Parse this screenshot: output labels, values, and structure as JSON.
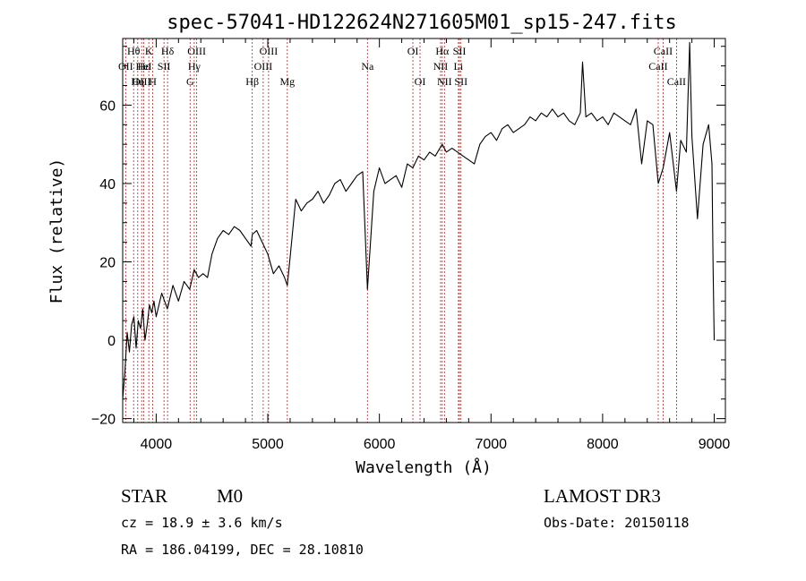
{
  "chart_data": {
    "type": "line",
    "title": "spec-57041-HD122624N271605M01_sp15-247.fits",
    "xlabel": "Wavelength (Å)",
    "ylabel": "Flux (relative)",
    "xlim": [
      3700,
      9100
    ],
    "ylim": [
      -21,
      77
    ],
    "xticks": [
      4000,
      5000,
      6000,
      7000,
      8000,
      9000
    ],
    "yticks": [
      -20,
      0,
      20,
      40,
      60
    ],
    "spectrum": {
      "name": "flux",
      "x": [
        3700,
        3720,
        3740,
        3760,
        3780,
        3800,
        3820,
        3840,
        3860,
        3880,
        3900,
        3920,
        3940,
        3960,
        3980,
        4000,
        4050,
        4100,
        4150,
        4200,
        4250,
        4300,
        4340,
        4380,
        4420,
        4460,
        4500,
        4550,
        4600,
        4650,
        4700,
        4750,
        4800,
        4850,
        4861,
        4900,
        4950,
        5000,
        5050,
        5100,
        5150,
        5175,
        5200,
        5250,
        5300,
        5350,
        5400,
        5450,
        5500,
        5550,
        5600,
        5650,
        5700,
        5750,
        5800,
        5850,
        5893,
        5950,
        6000,
        6050,
        6100,
        6150,
        6200,
        6250,
        6300,
        6350,
        6400,
        6450,
        6500,
        6563,
        6600,
        6650,
        6700,
        6750,
        6800,
        6850,
        6900,
        6950,
        7000,
        7050,
        7100,
        7150,
        7200,
        7250,
        7300,
        7350,
        7400,
        7450,
        7500,
        7550,
        7600,
        7650,
        7700,
        7750,
        7800,
        7820,
        7850,
        7900,
        7950,
        8000,
        8050,
        8100,
        8150,
        8200,
        8250,
        8300,
        8350,
        8400,
        8450,
        8498,
        8542,
        8600,
        8662,
        8700,
        8750,
        8780,
        8800,
        8850,
        8900,
        8950,
        8980,
        8990,
        9000
      ],
      "y": [
        -15,
        -8,
        2,
        -3,
        4,
        6,
        -2,
        5,
        3,
        8,
        0,
        4,
        9,
        7,
        10,
        6,
        12,
        8,
        14,
        10,
        15,
        13,
        18,
        16,
        17,
        16,
        22,
        26,
        28,
        27,
        29,
        28,
        26,
        24,
        27,
        28,
        25,
        22,
        17,
        19,
        16,
        14,
        21,
        36,
        33,
        35,
        36,
        38,
        35,
        37,
        40,
        41,
        38,
        40,
        42,
        43,
        13,
        38,
        44,
        40,
        41,
        42,
        39,
        45,
        44,
        47,
        46,
        48,
        47,
        50,
        48,
        49,
        48,
        47,
        46,
        45,
        50,
        52,
        53,
        51,
        54,
        55,
        53,
        54,
        55,
        57,
        56,
        58,
        57,
        59,
        57,
        58,
        56,
        55,
        58,
        71,
        57,
        58,
        56,
        57,
        55,
        58,
        57,
        56,
        55,
        59,
        45,
        56,
        55,
        40,
        44,
        53,
        38,
        51,
        48,
        76,
        52,
        31,
        50,
        55,
        45,
        18,
        0
      ]
    },
    "lines": [
      {
        "label": "Hθ",
        "x": 3798,
        "row": 0
      },
      {
        "label": "OII",
        "x": 3727,
        "row": 1
      },
      {
        "label": "OIII",
        "x": 3870,
        "row": 2
      },
      {
        "label": "Hε",
        "x": 3889,
        "row": 1
      },
      {
        "label": "HeI",
        "x": 3889,
        "row": 1
      },
      {
        "label": "Hη",
        "x": 3835,
        "row": 2
      },
      {
        "label": "K",
        "x": 3934,
        "row": 0
      },
      {
        "label": "H",
        "x": 3969,
        "row": 2
      },
      {
        "label": "SII",
        "x": 4070,
        "row": 1
      },
      {
        "label": "Hδ",
        "x": 4102,
        "row": 0
      },
      {
        "label": "OIII",
        "x": 4363,
        "row": 0
      },
      {
        "label": "Hγ",
        "x": 4341,
        "row": 1
      },
      {
        "label": "G",
        "x": 4304,
        "row": 2
      },
      {
        "label": "Hβ",
        "x": 4861,
        "row": 2
      },
      {
        "label": "OIII",
        "x": 5007,
        "row": 0
      },
      {
        "label": "OIII",
        "x": 4959,
        "row": 1
      },
      {
        "label": "Mg",
        "x": 5175,
        "row": 2
      },
      {
        "label": "Na",
        "x": 5893,
        "row": 1
      },
      {
        "label": "OI",
        "x": 6300,
        "row": 0
      },
      {
        "label": "OI",
        "x": 6364,
        "row": 2
      },
      {
        "label": "Hα",
        "x": 6563,
        "row": 0
      },
      {
        "label": "NII",
        "x": 6548,
        "row": 1
      },
      {
        "label": "NII",
        "x": 6583,
        "row": 2
      },
      {
        "label": "SII",
        "x": 6717,
        "row": 0
      },
      {
        "label": "Li",
        "x": 6708,
        "row": 1
      },
      {
        "label": "SII",
        "x": 6731,
        "row": 2
      },
      {
        "label": "CaII",
        "x": 8542,
        "row": 0
      },
      {
        "label": "CaII",
        "x": 8498,
        "row": 1
      },
      {
        "label": "CaII",
        "x": 8662,
        "row": 2
      }
    ]
  },
  "info": {
    "class": "STAR",
    "subclass": "M0",
    "survey": "LAMOST DR3",
    "cz": "cz = 18.9 ± 3.6 km/s",
    "obsdate": "Obs-Date: 20150118",
    "radec": "RA = 186.04199, DEC =  28.10810"
  }
}
